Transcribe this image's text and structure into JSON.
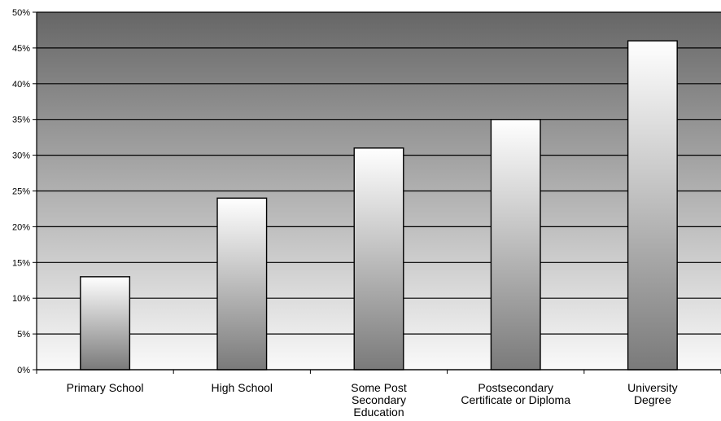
{
  "chart_data": {
    "type": "bar",
    "title": "",
    "xlabel": "",
    "ylabel": "",
    "categories": [
      [
        "Primary School"
      ],
      [
        "High School"
      ],
      [
        "Some Post",
        "Secondary",
        "Education"
      ],
      [
        "Postsecondary",
        "Certificate or Diploma"
      ],
      [
        "University",
        "Degree"
      ]
    ],
    "values": [
      13,
      24,
      31,
      35,
      46
    ],
    "ylim": [
      0,
      50
    ],
    "yticks": [
      0,
      5,
      10,
      15,
      20,
      25,
      30,
      35,
      40,
      45,
      50
    ],
    "ytick_labels": [
      "0%",
      "5%",
      "10%",
      "15%",
      "20%",
      "25%",
      "30%",
      "35%",
      "40%",
      "45%",
      "50%"
    ],
    "grid": true,
    "legend": "none"
  }
}
